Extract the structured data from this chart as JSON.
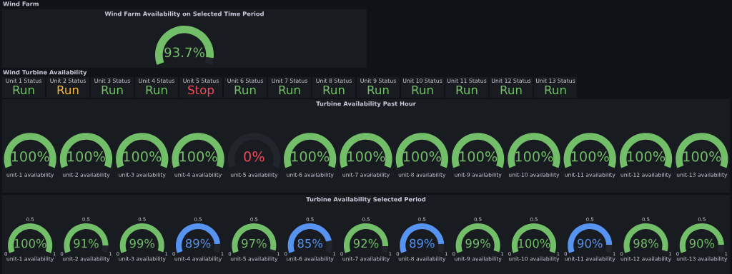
{
  "chart_data": [
    {
      "type": "other",
      "title": "Wind Farm"
    },
    {
      "type": "donut",
      "title": "Wind Farm Availability on Selected Time Period",
      "categories": [
        null,
        null
      ],
      "values": [
        93.7,
        6.3
      ],
      "value_labels": [
        "93.7%",
        null
      ],
      "colors": [
        "#73bf69",
        "#22252b"
      ]
    },
    {
      "type": "other",
      "title": "Wind Turbine Availability"
    },
    {
      "type": "other",
      "title": "Unit 1 Status",
      "annotations": [
        "Run"
      ],
      "color": "#73bf69"
    },
    {
      "type": "other",
      "title": "Unit 2 Status",
      "annotations": [
        "Run"
      ],
      "color": "#f5b73b"
    },
    {
      "type": "other",
      "title": "Unit 3 Status",
      "annotations": [
        "Run"
      ],
      "color": "#73bf69"
    },
    {
      "type": "other",
      "title": "Unit 4 Status",
      "annotations": [
        "Run"
      ],
      "color": "#73bf69"
    },
    {
      "type": "other",
      "title": "Unit 5 Status",
      "annotations": [
        "Stop"
      ],
      "color": "#f2495c"
    },
    {
      "type": "other",
      "title": "Unit 6 Status",
      "annotations": [
        "Run"
      ],
      "color": "#73bf69"
    },
    {
      "type": "other",
      "title": "Unit 7 Status",
      "annotations": [
        "Run"
      ],
      "color": "#73bf69"
    },
    {
      "type": "other",
      "title": "Unit 8 Status",
      "annotations": [
        "Run"
      ],
      "color": "#73bf69"
    },
    {
      "type": "other",
      "title": "Unit 9 Status",
      "annotations": [
        "Run"
      ],
      "color": "#73bf69"
    },
    {
      "type": "other",
      "title": "Unit 10 Status",
      "annotations": [
        "Run"
      ],
      "color": "#73bf69"
    },
    {
      "type": "other",
      "title": "Unit 11 Status",
      "annotations": [
        "Run"
      ],
      "color": "#73bf69"
    },
    {
      "type": "other",
      "title": "Unit 12 Status",
      "annotations": [
        "Run"
      ],
      "color": "#73bf69"
    },
    {
      "type": "other",
      "title": "Unit 13 Status",
      "annotations": [
        "Run"
      ],
      "color": "#73bf69"
    },
    {
      "type": "donut",
      "title": "Turbine Availability Past Hour",
      "categories": [
        null,
        null
      ],
      "series": [
        {
          "name": "unit-1 availability",
          "values": [
            100,
            0
          ],
          "value_labels": [
            "100%",
            null
          ],
          "colors": [
            "#73bf69",
            "#22252b"
          ]
        },
        {
          "name": "unit-2 availability",
          "values": [
            100,
            0
          ],
          "value_labels": [
            "100%",
            null
          ],
          "colors": [
            "#73bf69",
            "#22252b"
          ]
        },
        {
          "name": "unit-3 availability",
          "values": [
            100,
            0
          ],
          "value_labels": [
            "100%",
            null
          ],
          "colors": [
            "#73bf69",
            "#22252b"
          ]
        },
        {
          "name": "unit-4 availability",
          "values": [
            100,
            0
          ],
          "value_labels": [
            "100%",
            null
          ],
          "colors": [
            "#73bf69",
            "#22252b"
          ]
        },
        {
          "name": "unit-5 availability",
          "values": [
            0,
            100
          ],
          "value_labels": [
            "0%",
            null
          ],
          "colors": [
            "#f2495c",
            "#22252b"
          ]
        },
        {
          "name": "unit-6 availability",
          "values": [
            100,
            0
          ],
          "value_labels": [
            "100%",
            null
          ],
          "colors": [
            "#73bf69",
            "#22252b"
          ]
        },
        {
          "name": "unit-7 availability",
          "values": [
            100,
            0
          ],
          "value_labels": [
            "100%",
            null
          ],
          "colors": [
            "#73bf69",
            "#22252b"
          ]
        },
        {
          "name": "unit-8 availability",
          "values": [
            100,
            0
          ],
          "value_labels": [
            "100%",
            null
          ],
          "colors": [
            "#73bf69",
            "#22252b"
          ]
        },
        {
          "name": "unit-9 availability",
          "values": [
            100,
            0
          ],
          "value_labels": [
            "100%",
            null
          ],
          "colors": [
            "#73bf69",
            "#22252b"
          ]
        },
        {
          "name": "unit-10 availability",
          "values": [
            100,
            0
          ],
          "value_labels": [
            "100%",
            null
          ],
          "colors": [
            "#73bf69",
            "#22252b"
          ]
        },
        {
          "name": "unit-11 availability",
          "values": [
            100,
            0
          ],
          "value_labels": [
            "100%",
            null
          ],
          "colors": [
            "#73bf69",
            "#22252b"
          ]
        },
        {
          "name": "unit-12 availability",
          "values": [
            100,
            0
          ],
          "value_labels": [
            "100%",
            null
          ],
          "colors": [
            "#73bf69",
            "#22252b"
          ]
        },
        {
          "name": "unit-13 availability",
          "values": [
            100,
            0
          ],
          "value_labels": [
            "100%",
            null
          ],
          "colors": [
            "#73bf69",
            "#22252b"
          ]
        }
      ]
    },
    {
      "type": "donut",
      "title": "Turbine Availability Selected Period",
      "categories": [
        null,
        null
      ],
      "annotations": [
        "0",
        "0.5",
        "1"
      ],
      "series": [
        {
          "name": "unit-1 availability",
          "values": [
            100,
            0
          ],
          "value_labels": [
            "100%",
            null
          ],
          "colors": [
            "#73bf69",
            "#22252b"
          ]
        },
        {
          "name": "unit-2 availability",
          "values": [
            91,
            9
          ],
          "value_labels": [
            "91%",
            null
          ],
          "colors": [
            "#73bf69",
            "#22252b"
          ]
        },
        {
          "name": "unit-3 availability",
          "values": [
            99,
            1
          ],
          "value_labels": [
            "99%",
            null
          ],
          "colors": [
            "#73bf69",
            "#22252b"
          ]
        },
        {
          "name": "unit-4 availability",
          "values": [
            89,
            11
          ],
          "value_labels": [
            "89%",
            null
          ],
          "colors": [
            "#5794f2",
            "#22252b"
          ]
        },
        {
          "name": "unit-5 availability",
          "values": [
            97,
            3
          ],
          "value_labels": [
            "97%",
            null
          ],
          "colors": [
            "#73bf69",
            "#22252b"
          ]
        },
        {
          "name": "unit-6 availability",
          "values": [
            85,
            15
          ],
          "value_labels": [
            "85%",
            null
          ],
          "colors": [
            "#5794f2",
            "#22252b"
          ]
        },
        {
          "name": "unit-7 availability",
          "values": [
            92,
            8
          ],
          "value_labels": [
            "92%",
            null
          ],
          "colors": [
            "#73bf69",
            "#22252b"
          ]
        },
        {
          "name": "unit-8 availability",
          "values": [
            89,
            11
          ],
          "value_labels": [
            "89%",
            null
          ],
          "colors": [
            "#5794f2",
            "#22252b"
          ]
        },
        {
          "name": "unit-9 availability",
          "values": [
            99,
            1
          ],
          "value_labels": [
            "99%",
            null
          ],
          "colors": [
            "#73bf69",
            "#22252b"
          ]
        },
        {
          "name": "unit-10 availability",
          "values": [
            100,
            0
          ],
          "value_labels": [
            "100%",
            null
          ],
          "colors": [
            "#73bf69",
            "#22252b"
          ]
        },
        {
          "name": "unit-11 availability",
          "values": [
            90,
            10
          ],
          "value_labels": [
            "90%",
            null
          ],
          "colors": [
            "#5794f2",
            "#22252b"
          ]
        },
        {
          "name": "unit-12 availability",
          "values": [
            98,
            2
          ],
          "value_labels": [
            "98%",
            null
          ],
          "colors": [
            "#73bf69",
            "#22252b"
          ]
        },
        {
          "name": "unit-13 availability",
          "values": [
            90,
            10
          ],
          "value_labels": [
            "90%",
            null
          ],
          "colors": [
            "#73bf69",
            "#22252b"
          ]
        }
      ]
    }
  ]
}
